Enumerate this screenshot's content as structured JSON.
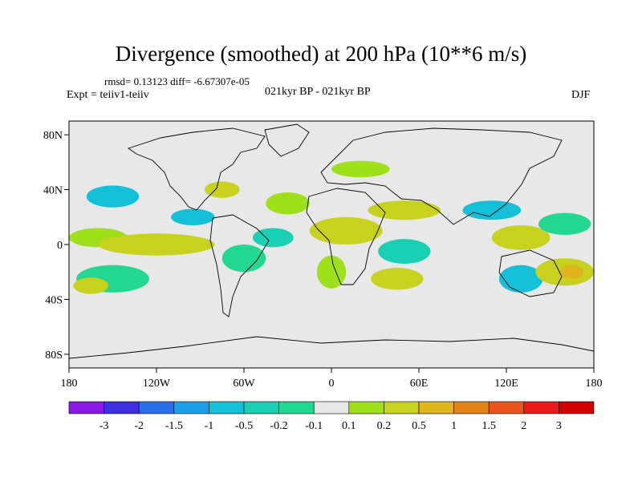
{
  "title": "Divergence (smoothed) at 200 hPa (10**6 m/s)",
  "stats": "rmsd= 0.13123 diff= -6.67307e-05",
  "experiment": "Expt = teiiv1-teiiv",
  "center_label": "021kyr BP - 021kyr BP",
  "season": "DJF",
  "lat_labels": [
    "80N",
    "40N",
    "0",
    "40S",
    "80S"
  ],
  "lon_labels": [
    "180",
    "120W",
    "60W",
    "0",
    "60E",
    "120E",
    "180"
  ],
  "colorbar": {
    "labels": [
      "-3",
      "-2",
      "-1.5",
      "-1",
      "-0.5",
      "-0.2",
      "-0.1",
      "0.1",
      "0.2",
      "0.5",
      "1",
      "1.5",
      "2",
      "3"
    ],
    "colors": [
      "#8c1ae6",
      "#3c2fe0",
      "#2a6fe8",
      "#1a9ee8",
      "#14bfd8",
      "#1ad0b4",
      "#22d890",
      "#e8e8e8",
      "#9ee01a",
      "#c8d21e",
      "#e0b41c",
      "#e6841a",
      "#e8541a",
      "#e81a1a",
      "#d40000"
    ]
  },
  "map": {
    "background": "#e8e8e8",
    "contours": [
      {
        "level": "-0.2",
        "color": "#14bfd8",
        "lon": -150,
        "lat": 35,
        "rx": 18,
        "ry": 8
      },
      {
        "level": "0.2",
        "color": "#9ee01a",
        "lon": -160,
        "lat": 5,
        "rx": 20,
        "ry": 7
      },
      {
        "level": "0.5",
        "color": "#c8d21e",
        "lon": -120,
        "lat": 0,
        "rx": 40,
        "ry": 8
      },
      {
        "level": "-0.1",
        "color": "#22d890",
        "lon": -150,
        "lat": -25,
        "rx": 25,
        "ry": 10
      },
      {
        "level": "0.2",
        "color": "#c8d21e",
        "lon": -165,
        "lat": -30,
        "rx": 12,
        "ry": 6
      },
      {
        "level": "-0.2",
        "color": "#14bfd8",
        "lon": -95,
        "lat": 20,
        "rx": 15,
        "ry": 6
      },
      {
        "level": "0.2",
        "color": "#c8d21e",
        "lon": -75,
        "lat": 40,
        "rx": 12,
        "ry": 6
      },
      {
        "level": "-0.1",
        "color": "#22d890",
        "lon": -60,
        "lat": -10,
        "rx": 15,
        "ry": 10
      },
      {
        "level": "0.2",
        "color": "#9ee01a",
        "lon": -30,
        "lat": 30,
        "rx": 15,
        "ry": 8
      },
      {
        "level": "-0.2",
        "color": "#1ad0b4",
        "lon": -40,
        "lat": 5,
        "rx": 14,
        "ry": 7
      },
      {
        "level": "0.5",
        "color": "#c8d21e",
        "lon": 10,
        "lat": 10,
        "rx": 25,
        "ry": 10
      },
      {
        "level": "0.1",
        "color": "#9ee01a",
        "lon": 0,
        "lat": -20,
        "rx": 10,
        "ry": 12
      },
      {
        "level": "0.5",
        "color": "#c8d21e",
        "lon": 50,
        "lat": 25,
        "rx": 25,
        "ry": 7
      },
      {
        "level": "-0.2",
        "color": "#1ad0b4",
        "lon": 50,
        "lat": -5,
        "rx": 18,
        "ry": 9
      },
      {
        "level": "0.2",
        "color": "#c8d21e",
        "lon": 45,
        "lat": -25,
        "rx": 18,
        "ry": 8
      },
      {
        "level": "-0.2",
        "color": "#14bfd8",
        "lon": 110,
        "lat": 25,
        "rx": 20,
        "ry": 7
      },
      {
        "level": "0.5",
        "color": "#c8d21e",
        "lon": 130,
        "lat": 5,
        "rx": 20,
        "ry": 9
      },
      {
        "level": "-0.5",
        "color": "#14bfd8",
        "lon": 130,
        "lat": -25,
        "rx": 15,
        "ry": 10
      },
      {
        "level": "0.5",
        "color": "#c8d21e",
        "lon": 160,
        "lat": -20,
        "rx": 20,
        "ry": 10
      },
      {
        "level": "1",
        "color": "#e0b41c",
        "lon": 165,
        "lat": -20,
        "rx": 8,
        "ry": 5
      },
      {
        "level": "-0.1",
        "color": "#22d890",
        "lon": 160,
        "lat": 15,
        "rx": 18,
        "ry": 8
      },
      {
        "level": "0.1",
        "color": "#9ee01a",
        "lon": 20,
        "lat": 55,
        "rx": 20,
        "ry": 6
      }
    ]
  }
}
